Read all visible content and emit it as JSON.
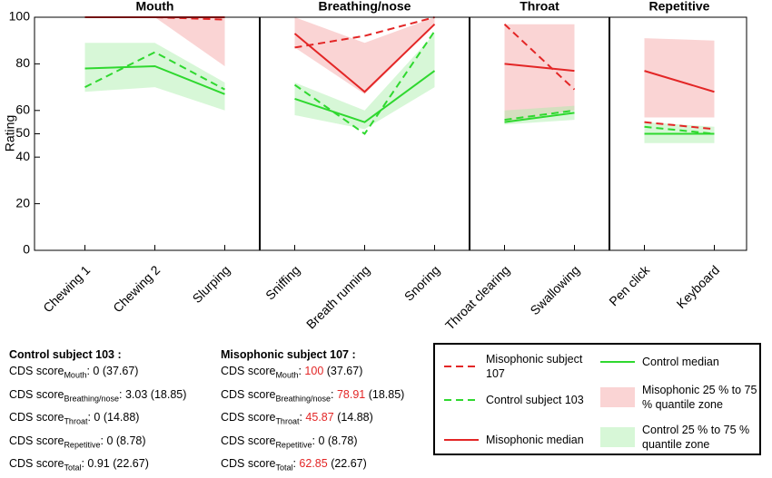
{
  "chart_data": {
    "type": "line",
    "ylabel": "Rating",
    "categories": [
      "Chewing 1",
      "Chewing 2",
      "Slurping",
      "Sniffing",
      "Breath running",
      "Snoring",
      "Throat clearing",
      "Swallowing",
      "Pen click",
      "Keyboard"
    ],
    "groups": [
      {
        "name": "Mouth",
        "count": 3
      },
      {
        "name": "Breathing/nose",
        "count": 3
      },
      {
        "name": "Throat",
        "count": 2
      },
      {
        "name": "Repetitive",
        "count": 2
      }
    ],
    "ylim": [
      0,
      100
    ],
    "yticks": [
      0,
      20,
      40,
      50,
      60,
      80,
      100
    ],
    "series": [
      {
        "name": "Misophonic subject 107",
        "color": "#e32626",
        "dashed": true,
        "values": [
          100,
          100,
          99,
          87,
          92,
          100,
          97,
          69,
          55,
          52
        ]
      },
      {
        "name": "Control subject 103",
        "color": "#2fd82f",
        "dashed": true,
        "values": [
          70,
          85,
          69,
          71,
          50,
          94,
          56,
          60,
          53,
          50
        ]
      },
      {
        "name": "Misophonic median",
        "color": "#e32626",
        "dashed": false,
        "values": [
          100,
          100,
          100,
          93,
          68,
          97,
          80,
          77,
          77,
          68
        ]
      },
      {
        "name": "Control median",
        "color": "#2fd82f",
        "dashed": false,
        "values": [
          78,
          79,
          67,
          65,
          55,
          77,
          55,
          59,
          50,
          50
        ]
      }
    ],
    "bands": [
      {
        "name": "Misophonic 25 % to 75 % quantile zone",
        "color": "#f4a0a0",
        "low": [
          100,
          100,
          79,
          87,
          67,
          97,
          55,
          60,
          57,
          57
        ],
        "high": [
          100,
          100,
          100,
          100,
          89,
          100,
          97,
          97,
          91,
          90
        ]
      },
      {
        "name": "Control 25 % to 75 % quantile zone",
        "color": "#a6eea6",
        "low": [
          68,
          70,
          60,
          58,
          52,
          70,
          54,
          56,
          46,
          46
        ],
        "high": [
          89,
          89,
          72,
          72,
          60,
          93,
          60,
          62,
          55,
          53
        ]
      }
    ]
  },
  "blocks": [
    {
      "title": "Control subject 103 :",
      "separator": ":",
      "highlight_color": "#e32626",
      "lines": [
        {
          "label": "CDS score",
          "sub": "Mouth",
          "value": 0,
          "ref": "(37.67)",
          "highlight": false
        },
        {
          "label": "CDS score",
          "sub": "Breathing/nose",
          "value": 3.03,
          "ref": "(18.85)",
          "highlight": false
        },
        {
          "label": "CDS score",
          "sub": "Throat",
          "value": 0,
          "ref": "(14.88)",
          "highlight": false
        },
        {
          "label": "CDS score",
          "sub": "Repetitive",
          "value": 0,
          "ref": "(8.78)",
          "highlight": false
        },
        {
          "label": "CDS score",
          "sub": "Total",
          "value": 0.91,
          "ref": "(22.67)",
          "highlight": false
        }
      ]
    },
    {
      "title": "Misophonic subject 107 :",
      "separator": ":",
      "highlight_color": "#e32626",
      "lines": [
        {
          "label": "CDS score",
          "sub": "Mouth",
          "value": 100,
          "ref": "(37.67)",
          "highlight": true
        },
        {
          "label": "CDS score",
          "sub": "Breathing/nose",
          "value": 78.91,
          "ref": "(18.85)",
          "highlight": true
        },
        {
          "label": "CDS score",
          "sub": "Throat",
          "value": 45.87,
          "ref": "(14.88)",
          "highlight": true
        },
        {
          "label": "CDS score",
          "sub": "Repetitive",
          "value": 0,
          "ref": "(8.78)",
          "highlight": false
        },
        {
          "label": "CDS score",
          "sub": "Total",
          "value": 62.85,
          "ref": "(22.67)",
          "highlight": true
        }
      ]
    }
  ]
}
